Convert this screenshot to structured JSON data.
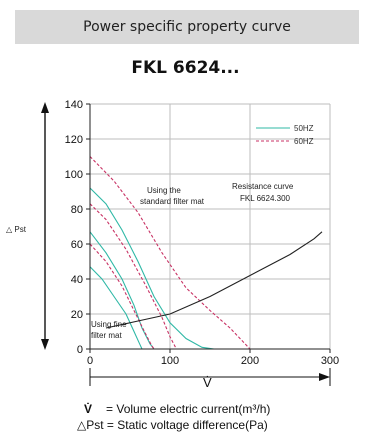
{
  "header": {
    "title": "Power specific property curve"
  },
  "model": "FKL 6624...",
  "chart_data": {
    "type": "line",
    "title": "FKL 6624...",
    "xlabel": "V̇",
    "ylabel": "△ Pst",
    "xlim": [
      0,
      300
    ],
    "ylim": [
      0,
      140
    ],
    "x_ticks": [
      0,
      100,
      200,
      300
    ],
    "y_ticks": [
      0,
      20,
      40,
      60,
      80,
      100,
      120,
      140
    ],
    "grid": true,
    "legend_position": "top-right",
    "series": [
      {
        "name": "50HZ",
        "color": "#2fb8a6",
        "style": "solid",
        "curves": [
          [
            [
              0,
              92
            ],
            [
              20,
              83
            ],
            [
              40,
              68
            ],
            [
              60,
              50
            ],
            [
              80,
              30
            ],
            [
              100,
              15
            ],
            [
              120,
              6
            ],
            [
              140,
              1
            ],
            [
              155,
              0
            ]
          ],
          [
            [
              0,
              67
            ],
            [
              20,
              55
            ],
            [
              40,
              40
            ],
            [
              55,
              25
            ],
            [
              65,
              12
            ],
            [
              75,
              3
            ],
            [
              80,
              0
            ]
          ],
          [
            [
              0,
              47
            ],
            [
              15,
              40
            ],
            [
              30,
              30
            ],
            [
              45,
              20
            ],
            [
              55,
              10
            ],
            [
              62,
              3
            ],
            [
              65,
              0
            ]
          ]
        ]
      },
      {
        "name": "60HZ",
        "color": "#c83264",
        "style": "dashed",
        "curves": [
          [
            [
              0,
              110
            ],
            [
              30,
              96
            ],
            [
              60,
              78
            ],
            [
              90,
              55
            ],
            [
              120,
              35
            ],
            [
              150,
              22
            ],
            [
              175,
              12
            ],
            [
              200,
              0
            ]
          ],
          [
            [
              0,
              83
            ],
            [
              20,
              74
            ],
            [
              45,
              57
            ],
            [
              70,
              36
            ],
            [
              90,
              18
            ],
            [
              100,
              7
            ],
            [
              108,
              0
            ]
          ],
          [
            [
              0,
              60
            ],
            [
              20,
              50
            ],
            [
              40,
              36
            ],
            [
              55,
              22
            ],
            [
              68,
              10
            ],
            [
              77,
              2
            ],
            [
              80,
              0
            ]
          ]
        ]
      },
      {
        "name": "Resistance curve FKL 6624.300",
        "color": "#222222",
        "style": "solid",
        "curves": [
          [
            [
              20,
              12
            ],
            [
              60,
              16
            ],
            [
              100,
              20
            ],
            [
              150,
              30
            ],
            [
              200,
              42
            ],
            [
              250,
              54
            ],
            [
              280,
              63
            ],
            [
              290,
              67
            ]
          ]
        ]
      }
    ],
    "annotations": [
      "Using the standard filter mat",
      "Resistance curve FKL 6624.300",
      "Using fine filter mat"
    ]
  },
  "legend": [
    {
      "label": "50HZ",
      "color": "#2fb8a6",
      "style": "solid"
    },
    {
      "label": "60HZ",
      "color": "#c83264",
      "style": "dashed"
    }
  ],
  "annotations": {
    "standard_1": "Using the",
    "standard_2": "standard filter mat",
    "resistance_1": "Resistance curve",
    "resistance_2": "FKL 6624.300",
    "fine_1": "Using fine",
    "fine_2": "filter mat"
  },
  "axis": {
    "ylabel": "△ Pst",
    "xlabel": "V̇"
  },
  "footnotes": {
    "line1_symbol": "V̇",
    "line1_text": "= Volume electric current(m³/h)",
    "line2_text": "△Pst = Static voltage difference(Pa)"
  }
}
